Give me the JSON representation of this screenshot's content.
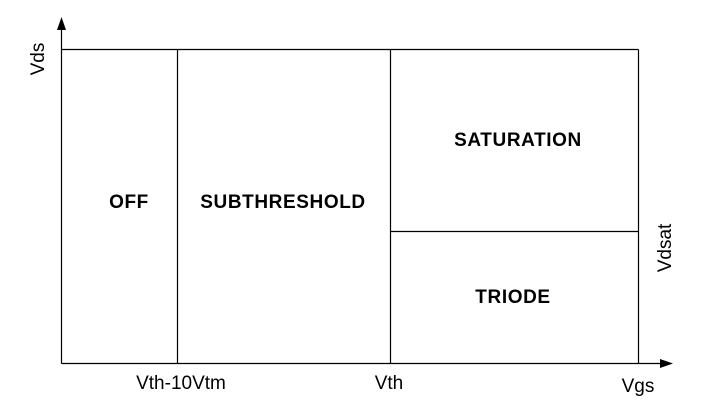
{
  "regions": {
    "off": "OFF",
    "subthreshold": "SUBTHRESHOLD",
    "saturation": "SATURATION",
    "triode": "TRIODE"
  },
  "axes": {
    "y_label": "Vds",
    "x_label": "Vgs",
    "boundary_x1_label": "Vth-10Vtm",
    "boundary_x2_label": "Vth",
    "boundary_y_label": "Vdsat"
  },
  "colors": {
    "stroke": "#000000",
    "background": "#ffffff"
  }
}
